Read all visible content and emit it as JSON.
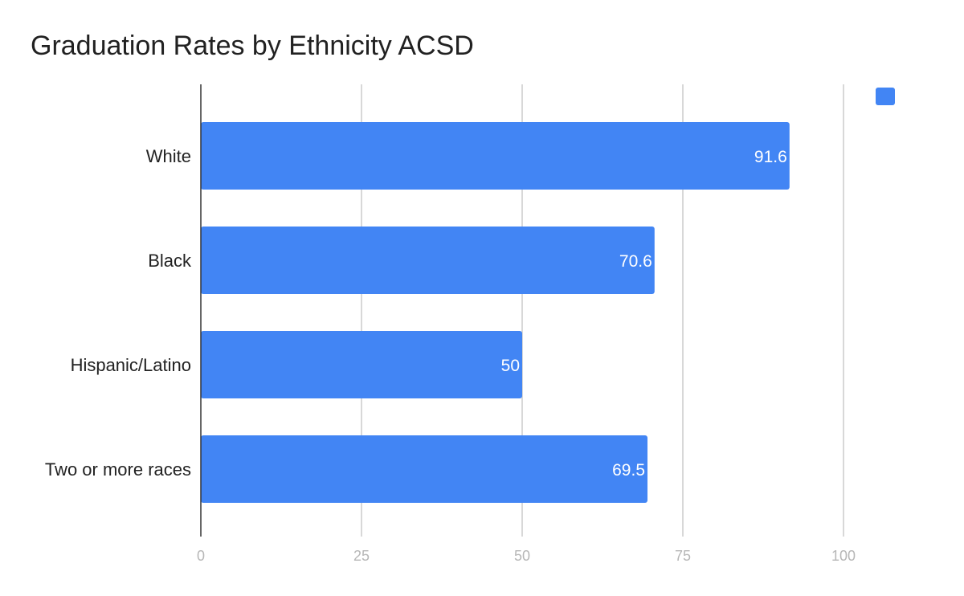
{
  "chart_data": {
    "type": "bar",
    "orientation": "horizontal",
    "title": "Graduation Rates by Ethnicity ACSD",
    "categories": [
      "White",
      "Black",
      "Hispanic/Latino",
      "Two or more races"
    ],
    "values": [
      91.6,
      70.6,
      50,
      69.5
    ],
    "data_labels": [
      "91.6",
      "70.6",
      "50",
      "69.5"
    ],
    "xlim": [
      0,
      100
    ],
    "xticks": [
      0,
      25,
      50,
      75,
      100
    ],
    "xtick_labels": [
      "0",
      "25",
      "50",
      "75",
      "100"
    ],
    "xlabel": "",
    "ylabel": "",
    "grid": true,
    "legend_position": "top-right",
    "colors": {
      "bar": "#4285f4",
      "grid": "#cccccc",
      "axis": "#333333",
      "tick_text": "#b7b7b7",
      "label_text": "#222222",
      "data_label_text": "#ffffff"
    }
  }
}
